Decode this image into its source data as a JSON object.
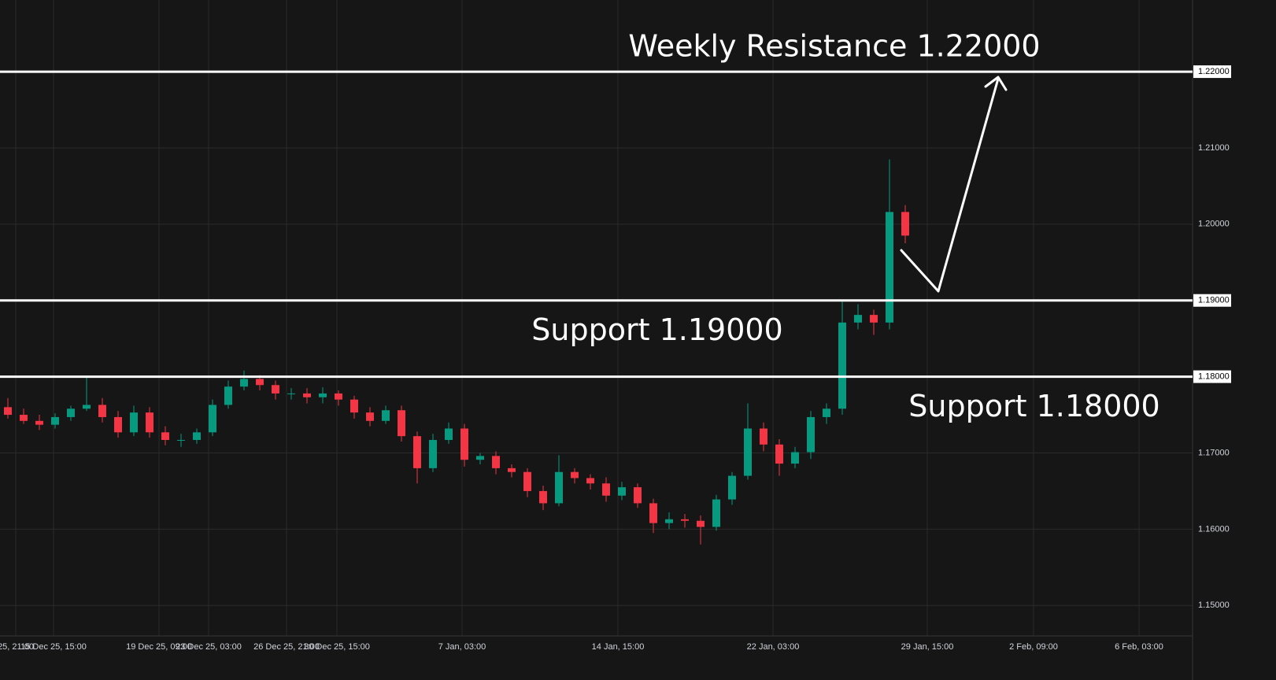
{
  "chart_data": {
    "type": "candlestick",
    "up_color": "#089981",
    "down_color": "#f23645",
    "open": [
      1.176,
      1.175,
      1.1742,
      1.1737,
      1.1747,
      1.1758,
      1.1763,
      1.1747,
      1.1727,
      1.1753,
      1.1727,
      1.1717,
      1.1717,
      1.1727,
      1.1763,
      1.1787,
      1.1797,
      1.1789,
      1.1778,
      1.1778,
      1.1773,
      1.1778,
      1.177,
      1.1753,
      1.1742,
      1.1756,
      1.1722,
      1.168,
      1.1717,
      1.1732,
      1.1691,
      1.1696,
      1.168,
      1.1675,
      1.165,
      1.1634,
      1.1675,
      1.1667,
      1.166,
      1.1644,
      1.1655,
      1.1634,
      1.1608,
      1.1613,
      1.1611,
      1.1603,
      1.1639,
      1.167,
      1.1732,
      1.1711,
      1.1686,
      1.1701,
      1.1747,
      1.1758,
      1.1871,
      1.1881,
      1.1871,
      1.2016
    ],
    "high": [
      1.1772,
      1.1758,
      1.175,
      1.1752,
      1.1762,
      1.18,
      1.1772,
      1.1755,
      1.1762,
      1.176,
      1.1735,
      1.1725,
      1.1732,
      1.177,
      1.1795,
      1.1808,
      1.1802,
      1.1795,
      1.1785,
      1.1785,
      1.1786,
      1.1782,
      1.1775,
      1.176,
      1.1762,
      1.1762,
      1.1728,
      1.1725,
      1.174,
      1.1738,
      1.17,
      1.1702,
      1.1685,
      1.168,
      1.1657,
      1.1697,
      1.168,
      1.1672,
      1.1668,
      1.1662,
      1.166,
      1.164,
      1.1622,
      1.162,
      1.1618,
      1.1645,
      1.1675,
      1.1765,
      1.174,
      1.1718,
      1.1708,
      1.1755,
      1.1765,
      1.19,
      1.1895,
      1.1888,
      1.2085,
      1.2025
    ],
    "low": [
      1.1745,
      1.1738,
      1.173,
      1.1732,
      1.1742,
      1.1755,
      1.174,
      1.172,
      1.1722,
      1.172,
      1.171,
      1.1708,
      1.1712,
      1.1722,
      1.1758,
      1.1782,
      1.1782,
      1.177,
      1.177,
      1.1765,
      1.1765,
      1.1762,
      1.1745,
      1.1735,
      1.1738,
      1.1715,
      1.166,
      1.1675,
      1.1712,
      1.1682,
      1.1685,
      1.1672,
      1.1668,
      1.1642,
      1.1625,
      1.163,
      1.166,
      1.1652,
      1.1636,
      1.1638,
      1.1628,
      1.1595,
      1.16,
      1.1602,
      1.158,
      1.1598,
      1.1632,
      1.1665,
      1.1702,
      1.167,
      1.168,
      1.1692,
      1.1738,
      1.175,
      1.1862,
      1.1855,
      1.1862,
      1.1975
    ],
    "close": [
      1.175,
      1.1742,
      1.1737,
      1.1747,
      1.1758,
      1.1763,
      1.1747,
      1.1727,
      1.1753,
      1.1727,
      1.1717,
      1.1717,
      1.1727,
      1.1763,
      1.1787,
      1.1797,
      1.1789,
      1.1778,
      1.1778,
      1.1773,
      1.1778,
      1.177,
      1.1753,
      1.1742,
      1.1756,
      1.1722,
      1.168,
      1.1717,
      1.1732,
      1.1691,
      1.1696,
      1.168,
      1.1675,
      1.165,
      1.1634,
      1.1675,
      1.1667,
      1.166,
      1.1644,
      1.1655,
      1.1634,
      1.1608,
      1.1613,
      1.1611,
      1.1603,
      1.1639,
      1.167,
      1.1732,
      1.1711,
      1.1686,
      1.1701,
      1.1747,
      1.1758,
      1.1871,
      1.1881,
      1.1871,
      1.2016,
      1.1985
    ],
    "xlim": [
      -0.5,
      75.25
    ],
    "xticks": [
      {
        "value": 0.5,
        "label": "25, 21:00"
      },
      {
        "value": 2.9,
        "label": "15 Dec 25, 15:00"
      },
      {
        "value": 9.6,
        "label": "19 Dec 25, 09:00"
      },
      {
        "value": 12.75,
        "label": "23 Dec 25, 03:00"
      },
      {
        "value": 17.7,
        "label": "26 Dec 25, 21:00"
      },
      {
        "value": 20.9,
        "label": "30 Dec 25, 15:00"
      },
      {
        "value": 28.85,
        "label": "7 Jan, 03:00"
      },
      {
        "value": 38.75,
        "label": "14 Jan, 15:00"
      },
      {
        "value": 48.6,
        "label": "22 Jan, 03:00"
      },
      {
        "value": 58.4,
        "label": "29 Jan, 15:00"
      },
      {
        "value": 65.15,
        "label": "2 Feb, 09:00"
      },
      {
        "value": 71.85,
        "label": "6 Feb, 03:00"
      }
    ],
    "ylim": [
      1.146,
      1.2294
    ],
    "yticks": [
      {
        "value": 1.15,
        "label": "1.15000"
      },
      {
        "value": 1.16,
        "label": "1.16000"
      },
      {
        "value": 1.17,
        "label": "1.17000"
      },
      {
        "value": 1.18,
        "label": "1.18000"
      },
      {
        "value": 1.19,
        "label": "1.19000"
      },
      {
        "value": 1.2,
        "label": "1.20000"
      },
      {
        "value": 1.21,
        "label": "1.21000"
      },
      {
        "value": 1.22,
        "label": "1.22000"
      }
    ],
    "grid": true,
    "levels": [
      {
        "value": 1.22,
        "label": "Weekly Resistance 1.22000"
      },
      {
        "value": 1.19,
        "label": "Support 1.19000"
      },
      {
        "value": 1.18,
        "label": "Support 1.18000"
      }
    ]
  }
}
